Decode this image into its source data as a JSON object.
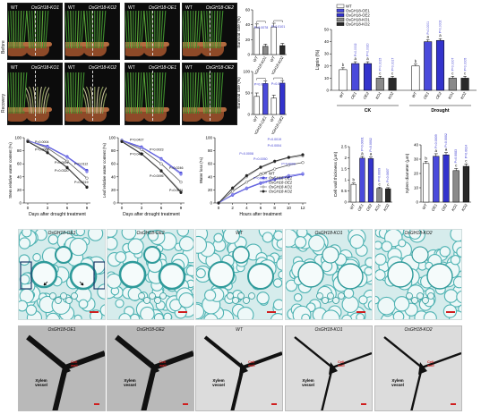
{
  "photos": {
    "row_labels": [
      "Before",
      "Recovery"
    ],
    "panels": [
      {
        "left": "WT",
        "right": "OsGH18-KO1"
      },
      {
        "left": "WT",
        "right": "OsGH18-KO2"
      },
      {
        "left": "WT",
        "right": "OsGH18-OE1"
      },
      {
        "left": "WT",
        "right": "OsGH18-OE2"
      }
    ]
  },
  "colors": {
    "wt": "#ffffff",
    "oe1": "#4a4adb",
    "oe2": "#3333cc",
    "ko1": "#8a8a8a",
    "ko2": "#2a2a2a",
    "accent": "#3d3dcf"
  },
  "section_titles": [
    "OsGH18-OE1",
    "OsGH18-OE2",
    "WT",
    "OsGH18-KO1",
    "OsGH18-KO2"
  ],
  "tem_titles": [
    "OsGH18-OE1",
    "OsGH18-OE2",
    "WT",
    "OsGH18-KO1",
    "OsGH18-KO2"
  ],
  "tem_labels": {
    "xylem": "Xylem vessel",
    "cell_wall": "Cell wall"
  },
  "chart_data": [
    {
      "id": "survival-ko",
      "type": "bar",
      "ylabel": "Survival rate (%)",
      "ylim": [
        0,
        60
      ],
      "yticks": [
        0,
        20,
        40,
        60
      ],
      "categories": [
        "WT",
        "OsGH18-KO1",
        "WT",
        "OsGH18-KO2"
      ],
      "values": [
        36,
        11,
        37,
        12
      ],
      "errors": [
        5,
        3,
        5,
        3
      ],
      "colors": [
        "#ffffff",
        "#8a8a8a",
        "#ffffff",
        "#2a2a2a"
      ],
      "pvalues": [
        "P=0.0078",
        "P=0.0101"
      ]
    },
    {
      "id": "survival-oe",
      "type": "bar",
      "ylabel": "Survival rate (%)",
      "ylim": [
        0,
        100
      ],
      "yticks": [
        0,
        50,
        100
      ],
      "categories": [
        "WT",
        "OsGH18-OE1",
        "WT",
        "OsGH18-OE2"
      ],
      "values": [
        42,
        72,
        38,
        73
      ],
      "errors": [
        8,
        6,
        7,
        6
      ],
      "colors": [
        "#ffffff",
        "#4a4adb",
        "#ffffff",
        "#3333cc"
      ],
      "pvalues": [
        "P=0.0078",
        "P=0.0014"
      ]
    },
    {
      "id": "lignin",
      "type": "bar",
      "ylabel": "Lignin (%)",
      "ylim": [
        0,
        50
      ],
      "yticks": [
        0,
        10,
        20,
        30,
        40,
        50
      ],
      "legend": [
        "WT",
        "OsGH18-OE1",
        "OsGH18-OE2",
        "OsGH18-KO1",
        "OsGH18-KO2"
      ],
      "groups": [
        {
          "name": "CK",
          "categories": [
            "WT",
            "OE1",
            "OE2",
            "KO1",
            "KO2"
          ],
          "values": [
            17,
            22,
            22,
            10,
            10
          ],
          "letters": [
            "b",
            "a",
            "a",
            "c",
            "c"
          ],
          "pvalues": [
            "",
            "P=0.0002",
            "P=0.0020",
            "P=0.0015",
            "P=0.0017"
          ]
        },
        {
          "name": "Drought",
          "categories": [
            "WT",
            "OE1",
            "OE2",
            "KO1",
            "KO2"
          ],
          "values": [
            20,
            40,
            41,
            10,
            10
          ],
          "letters": [
            "b",
            "a",
            "a",
            "c",
            "c"
          ],
          "pvalues": [
            "",
            "P=0.0001",
            "P=0.0002",
            "P=0.0007",
            "P=0.0005"
          ]
        }
      ]
    },
    {
      "id": "stem-rwc",
      "type": "line",
      "ylabel": "Stem relative water content (%)",
      "xlabel": "Days after drought treatment",
      "x": [
        0,
        3,
        6,
        9
      ],
      "ylim": [
        0,
        100
      ],
      "yticks": [
        0,
        20,
        40,
        60,
        80,
        100
      ],
      "series": [
        {
          "key": "wt",
          "values": [
            96,
            84,
            64,
            38
          ]
        },
        {
          "key": "oe1",
          "values": [
            95,
            87,
            71,
            50
          ]
        },
        {
          "key": "oe2",
          "values": [
            95,
            86,
            70,
            48
          ]
        },
        {
          "key": "ko1",
          "values": [
            95,
            78,
            55,
            25
          ]
        },
        {
          "key": "ko2",
          "values": [
            94,
            77,
            54,
            24
          ]
        }
      ],
      "annotations": [
        "P=0.0004",
        "P=0.0008",
        "P=0.0001",
        "P=0.0112",
        "P=0.0320",
        "P=0.0219"
      ]
    },
    {
      "id": "leaf-rwc",
      "type": "line",
      "ylabel": "Leaf relative water content (%)",
      "xlabel": "Days after drought treatment",
      "x": [
        0,
        3,
        6,
        9
      ],
      "ylim": [
        0,
        100
      ],
      "yticks": [
        0,
        20,
        40,
        60,
        80,
        100
      ],
      "series": [
        {
          "key": "wt",
          "values": [
            96,
            82,
            60,
            32
          ]
        },
        {
          "key": "oe1",
          "values": [
            96,
            86,
            68,
            46
          ]
        },
        {
          "key": "oe2",
          "values": [
            95,
            85,
            67,
            44
          ]
        },
        {
          "key": "ko1",
          "values": [
            95,
            76,
            50,
            18
          ]
        },
        {
          "key": "ko2",
          "values": [
            94,
            75,
            49,
            16
          ]
        }
      ],
      "annotations": [
        "P=0.0427",
        "P=0.0023",
        "P=0.0407",
        "P=0.0095",
        "P=0.0246",
        "P=0.0011"
      ]
    },
    {
      "id": "water-loss",
      "type": "line",
      "ylabel": "Water loss (%)",
      "xlabel": "Hours after treatment",
      "x": [
        0,
        2,
        4,
        6,
        8,
        10,
        12
      ],
      "ylim": [
        0,
        100
      ],
      "yticks": [
        0,
        20,
        40,
        60,
        80,
        100
      ],
      "legend": [
        "WT",
        "OsGH18-OE1",
        "OsGH18-OE2",
        "OsGH18-KO1",
        "OsGH18-KO2"
      ],
      "series": [
        {
          "key": "wt",
          "values": [
            0,
            18,
            32,
            44,
            52,
            58,
            62
          ]
        },
        {
          "key": "oe1",
          "values": [
            0,
            12,
            22,
            30,
            36,
            40,
            44
          ]
        },
        {
          "key": "oe2",
          "values": [
            0,
            13,
            23,
            31,
            37,
            42,
            45
          ]
        },
        {
          "key": "ko1",
          "values": [
            0,
            22,
            40,
            54,
            63,
            69,
            72
          ]
        },
        {
          "key": "ko2",
          "values": [
            0,
            23,
            42,
            55,
            64,
            70,
            74
          ]
        }
      ],
      "annotations": [
        "P=0.0004",
        "P=0.0008",
        "P=0.0050",
        "P=0.0019",
        "P=0.0009",
        "P=0.0002"
      ]
    },
    {
      "id": "cell-wall",
      "type": "bar",
      "ylabel": "Cell wall thickness (μm)",
      "ylim": [
        0,
        2.5
      ],
      "yticks": [
        0,
        0.5,
        1.0,
        1.5,
        2.0,
        2.5
      ],
      "categories": [
        "WT",
        "OE1",
        "OE2",
        "KO1",
        "KO2"
      ],
      "values": [
        0.8,
        1.98,
        1.96,
        0.62,
        0.6
      ],
      "errors": [
        0.06,
        0.08,
        0.07,
        0.05,
        0.05
      ],
      "colors": [
        "#ffffff",
        "#4a4adb",
        "#3333cc",
        "#8a8a8a",
        "#2a2a2a"
      ],
      "letters": [
        "b",
        "a",
        "a",
        "c",
        "c"
      ],
      "pvalues": [
        "",
        "P=0.0001",
        "P=0.0002",
        "P=0.0009",
        "P=0.0007"
      ]
    },
    {
      "id": "xylem-diameter",
      "type": "bar",
      "ylabel": "Xylem diameter (μm)",
      "ylim": [
        0,
        40
      ],
      "yticks": [
        0,
        10,
        20,
        30,
        40
      ],
      "categories": [
        "WT",
        "OE1",
        "OE2",
        "KO1",
        "KO2"
      ],
      "values": [
        27,
        32,
        33,
        22,
        25
      ],
      "errors": [
        1.5,
        1.8,
        1.6,
        1.5,
        1.7
      ],
      "colors": [
        "#ffffff",
        "#4a4adb",
        "#3333cc",
        "#8a8a8a",
        "#2a2a2a"
      ],
      "letters": [
        "b",
        "a",
        "a",
        "c",
        "c"
      ],
      "pvalues": [
        "",
        "P=0.0009",
        "P=0.0002",
        "P=0.0083",
        "P=0.0024"
      ]
    }
  ]
}
